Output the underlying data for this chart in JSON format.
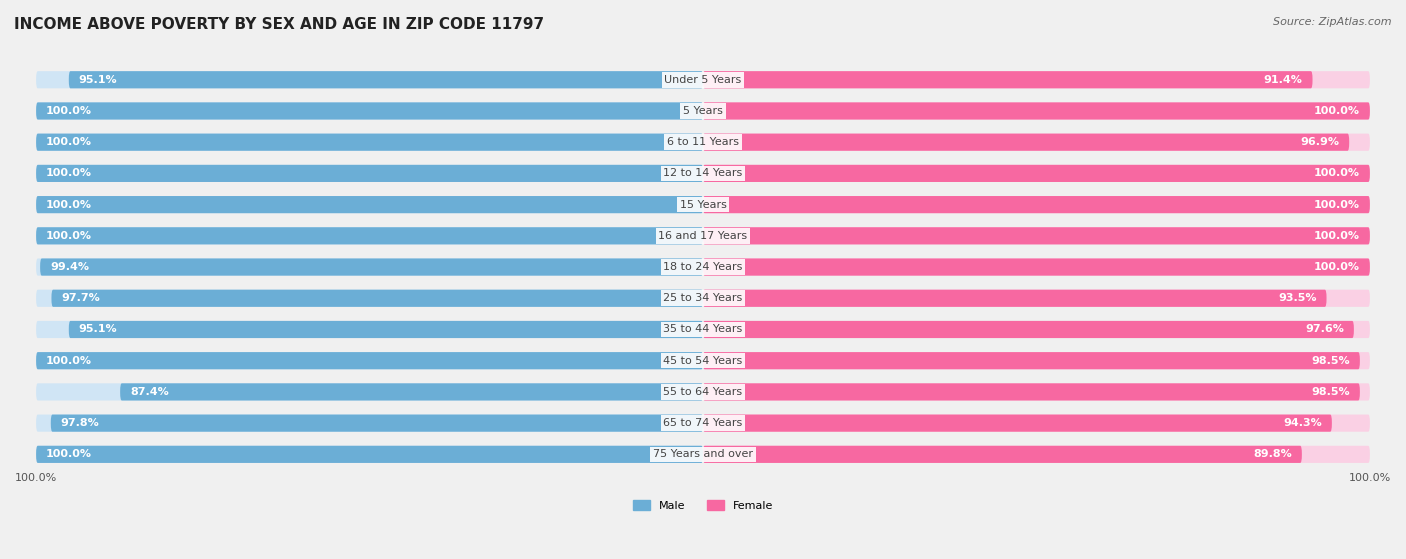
{
  "title": "INCOME ABOVE POVERTY BY SEX AND AGE IN ZIP CODE 11797",
  "source": "Source: ZipAtlas.com",
  "categories": [
    "Under 5 Years",
    "5 Years",
    "6 to 11 Years",
    "12 to 14 Years",
    "15 Years",
    "16 and 17 Years",
    "18 to 24 Years",
    "25 to 34 Years",
    "35 to 44 Years",
    "45 to 54 Years",
    "55 to 64 Years",
    "65 to 74 Years",
    "75 Years and over"
  ],
  "male_values": [
    95.1,
    100.0,
    100.0,
    100.0,
    100.0,
    100.0,
    99.4,
    97.7,
    95.1,
    100.0,
    87.4,
    97.8,
    100.0
  ],
  "female_values": [
    91.4,
    100.0,
    96.9,
    100.0,
    100.0,
    100.0,
    100.0,
    93.5,
    97.6,
    98.5,
    98.5,
    94.3,
    89.8
  ],
  "male_color": "#6baed6",
  "female_color": "#f768a1",
  "male_bg_color": "#d0e5f5",
  "female_bg_color": "#fad0e4",
  "male_label": "Male",
  "female_label": "Female",
  "background_color": "#f0f0f0",
  "row_bg_color": "#ffffff",
  "title_fontsize": 11,
  "label_fontsize": 8,
  "value_fontsize": 8,
  "source_fontsize": 8,
  "cat_fontsize": 8
}
